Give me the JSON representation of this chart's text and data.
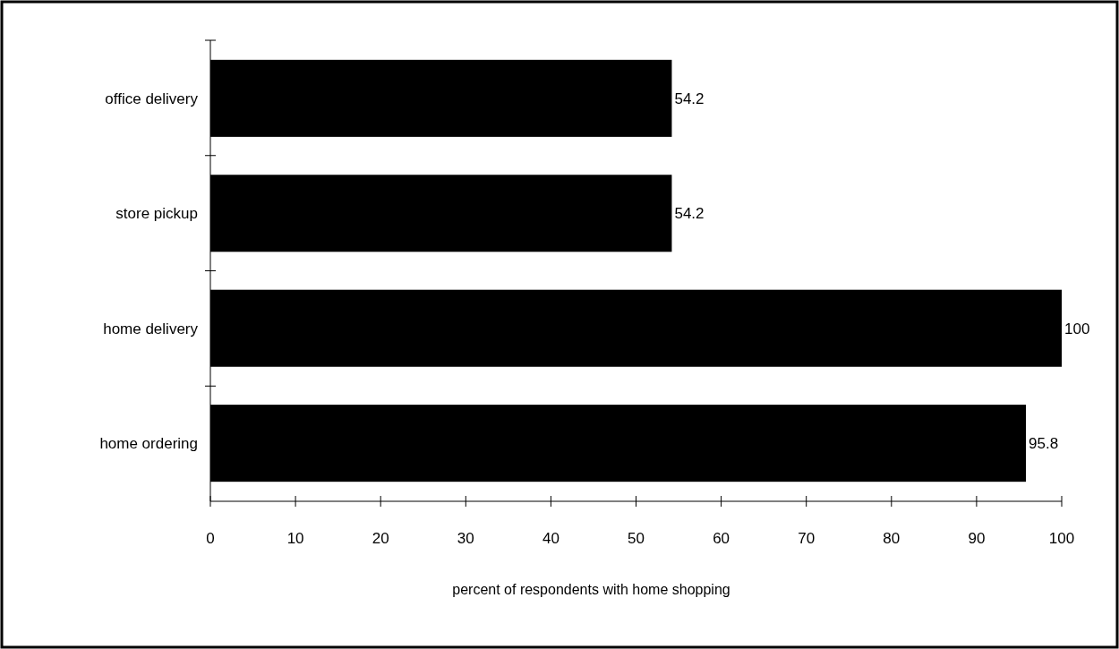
{
  "chart_data": {
    "type": "bar",
    "orientation": "horizontal",
    "xlabel": "percent of respondents with home shopping",
    "categories": [
      "office delivery",
      "store pickup",
      "home delivery",
      "home ordering"
    ],
    "values": [
      54.2,
      54.2,
      100,
      95.8
    ],
    "color": "#000000",
    "data_labels": true,
    "xlim": [
      0,
      100
    ],
    "xticks": [
      0,
      10,
      20,
      30,
      40,
      50,
      60,
      70,
      80,
      90,
      100
    ],
    "grid": false
  }
}
